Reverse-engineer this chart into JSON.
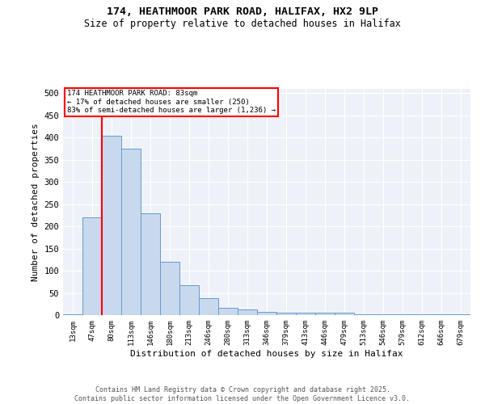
{
  "title1": "174, HEATHMOOR PARK ROAD, HALIFAX, HX2 9LP",
  "title2": "Size of property relative to detached houses in Halifax",
  "xlabel": "Distribution of detached houses by size in Halifax",
  "ylabel": "Number of detached properties",
  "bin_labels": [
    "13sqm",
    "47sqm",
    "80sqm",
    "113sqm",
    "146sqm",
    "180sqm",
    "213sqm",
    "246sqm",
    "280sqm",
    "313sqm",
    "346sqm",
    "379sqm",
    "413sqm",
    "446sqm",
    "479sqm",
    "513sqm",
    "546sqm",
    "579sqm",
    "612sqm",
    "646sqm",
    "679sqm"
  ],
  "bar_values": [
    2,
    220,
    405,
    375,
    230,
    120,
    68,
    38,
    17,
    13,
    7,
    5,
    5,
    5,
    5,
    2,
    2,
    1,
    1,
    1,
    2
  ],
  "bar_color": "#c8d9ee",
  "bar_edge_color": "#6699cc",
  "vline_pos": 1.5,
  "vline_color": "red",
  "annotation_title": "174 HEATHMOOR PARK ROAD: 83sqm",
  "annotation_line2": "← 17% of detached houses are smaller (250)",
  "annotation_line3": "83% of semi-detached houses are larger (1,236) →",
  "ylim": [
    0,
    510
  ],
  "yticks": [
    0,
    50,
    100,
    150,
    200,
    250,
    300,
    350,
    400,
    450,
    500
  ],
  "bg_color": "#eef2f8",
  "footer1": "Contains HM Land Registry data © Crown copyright and database right 2025.",
  "footer2": "Contains public sector information licensed under the Open Government Licence v3.0."
}
